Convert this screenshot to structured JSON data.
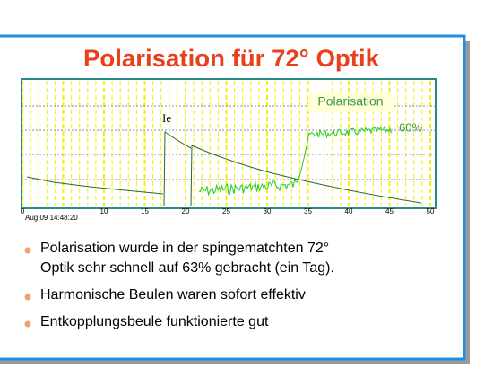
{
  "slide": {
    "title": "Polarisation für 72° Optik",
    "plot": {
      "legend": "Polarisation",
      "level_label": "60%",
      "curve_label": "Ie",
      "date_label": "Aug 09 14:48:20",
      "x_ticks": [
        "0",
        "10",
        "15",
        "20",
        "25",
        "30",
        "35",
        "40",
        "45",
        "50"
      ]
    },
    "bullets": [
      {
        "lines": [
          "Polarisation wurde in der spingematchten 72°",
          "Optik sehr schnell auf 63% gebracht (ein Tag)."
        ]
      },
      {
        "lines": [
          "Harmonische Beulen waren sofort effektiv"
        ]
      },
      {
        "lines": [
          "Entkopplungsbeule funktionierte gut"
        ]
      }
    ]
  }
}
